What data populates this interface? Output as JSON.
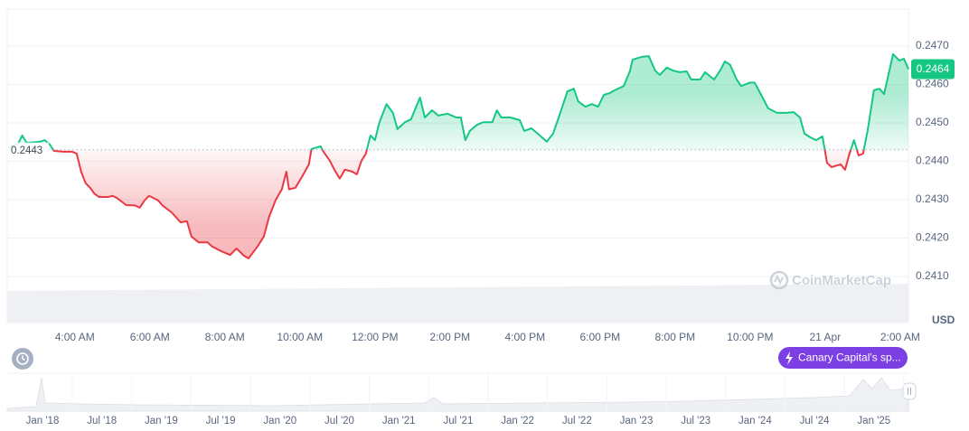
{
  "chart_data": {
    "type": "line",
    "x": [
      2.24,
      2.48,
      2.6,
      2.72,
      3.08,
      3.2,
      3.33,
      3.45,
      3.69,
      3.93,
      4.05,
      4.17,
      4.29,
      4.41,
      4.53,
      4.65,
      4.89,
      5.01,
      5.13,
      5.37,
      5.61,
      5.73,
      5.86,
      5.98,
      6.1,
      6.22,
      6.34,
      6.58,
      6.82,
      6.99,
      7.11,
      7.3,
      7.54,
      7.66,
      7.9,
      8.14,
      8.31,
      8.51,
      8.63,
      8.87,
      9.04,
      9.18,
      9.35,
      9.52,
      9.64,
      9.71,
      9.88,
      10.07,
      10.24,
      10.31,
      10.55,
      10.63,
      10.8,
      10.92,
      11.06,
      11.2,
      11.4,
      11.52,
      11.64,
      11.76,
      11.88,
      12.0,
      12.12,
      12.31,
      12.48,
      12.6,
      12.8,
      12.96,
      13.2,
      13.33,
      13.52,
      13.69,
      13.93,
      14.17,
      14.29,
      14.41,
      14.53,
      14.72,
      14.89,
      15.13,
      15.25,
      15.37,
      15.61,
      15.86,
      15.98,
      16.17,
      16.34,
      16.58,
      16.75,
      16.94,
      17.13,
      17.3,
      17.42,
      17.61,
      17.78,
      17.95,
      18.1,
      18.27,
      18.39,
      18.63,
      18.8,
      18.87,
      19.11,
      19.3,
      19.47,
      19.59,
      19.78,
      19.95,
      20.12,
      20.31,
      20.43,
      20.67,
      20.8,
      21.04,
      21.2,
      21.33,
      21.47,
      21.64,
      21.76,
      22.0,
      22.12,
      22.36,
      22.48,
      22.72,
      22.96,
      23.16,
      23.33,
      23.45,
      23.61,
      23.76,
      23.93,
      24.05,
      24.17,
      24.41,
      24.53,
      24.65,
      24.77,
      24.89,
      25.01,
      25.13,
      25.3,
      25.45,
      25.57,
      25.73,
      25.81,
      25.98,
      26.1,
      26.22
    ],
    "values": [
      0.24436,
      0.24444,
      0.24467,
      0.24448,
      0.24451,
      0.24455,
      0.24444,
      0.24427,
      0.24425,
      0.24425,
      0.2442,
      0.24373,
      0.24343,
      0.24331,
      0.24315,
      0.24307,
      0.24307,
      0.2431,
      0.24304,
      0.24286,
      0.24285,
      0.24279,
      0.24298,
      0.2431,
      0.24304,
      0.24298,
      0.24285,
      0.24267,
      0.24241,
      0.24244,
      0.24204,
      0.24189,
      0.24189,
      0.24178,
      0.24166,
      0.24156,
      0.24173,
      0.24154,
      0.24147,
      0.24178,
      0.24204,
      0.24255,
      0.24298,
      0.24327,
      0.24373,
      0.24327,
      0.24331,
      0.24362,
      0.24392,
      0.24432,
      0.24439,
      0.24425,
      0.24401,
      0.24378,
      0.24355,
      0.24378,
      0.24373,
      0.24366,
      0.24401,
      0.2442,
      0.24467,
      0.24455,
      0.24502,
      0.24549,
      0.24526,
      0.24484,
      0.24502,
      0.24509,
      0.24566,
      0.24514,
      0.24533,
      0.24519,
      0.24524,
      0.24514,
      0.24514,
      0.24455,
      0.24479,
      0.24495,
      0.24502,
      0.24502,
      0.24533,
      0.24514,
      0.24514,
      0.24507,
      0.24479,
      0.24486,
      0.24472,
      0.24451,
      0.24472,
      0.24526,
      0.24582,
      0.24589,
      0.24556,
      0.24542,
      0.24549,
      0.24542,
      0.24573,
      0.24578,
      0.24585,
      0.24596,
      0.24636,
      0.24665,
      0.24672,
      0.24674,
      0.24636,
      0.24625,
      0.24644,
      0.24636,
      0.24632,
      0.24634,
      0.24613,
      0.24613,
      0.24632,
      0.24613,
      0.24636,
      0.2466,
      0.24651,
      0.24613,
      0.24596,
      0.24605,
      0.24605,
      0.24561,
      0.24538,
      0.24526,
      0.24526,
      0.24528,
      0.24514,
      0.24472,
      0.24462,
      0.24455,
      0.24465,
      0.24396,
      0.24385,
      0.24392,
      0.24378,
      0.2442,
      0.24455,
      0.24415,
      0.2442,
      0.24479,
      0.24585,
      0.24589,
      0.24575,
      0.24644,
      0.24679,
      0.24662,
      0.24667,
      0.2464
    ],
    "up_color": "#16c784",
    "down_color": "#ea3943",
    "baseline": 0.2443,
    "current_price": 0.2464,
    "currency": "USD",
    "xlim": [
      2.2,
      26.22
    ],
    "xticks": [
      {
        "value": 4,
        "label": "4:00 AM"
      },
      {
        "value": 6,
        "label": "6:00 AM"
      },
      {
        "value": 8,
        "label": "8:00 AM"
      },
      {
        "value": 10,
        "label": "10:00 AM"
      },
      {
        "value": 12,
        "label": "12:00 PM"
      },
      {
        "value": 14,
        "label": "2:00 PM"
      },
      {
        "value": 16,
        "label": "4:00 PM"
      },
      {
        "value": 18,
        "label": "6:00 PM"
      },
      {
        "value": 20,
        "label": "8:00 PM"
      },
      {
        "value": 22,
        "label": "10:00 PM"
      },
      {
        "value": 24,
        "label": "21 Apr"
      },
      {
        "value": 26,
        "label": "2:00 AM"
      }
    ],
    "ylim": [
      0.24,
      0.248
    ],
    "yticks": [
      {
        "value": 0.241,
        "label": "0.2410"
      },
      {
        "value": 0.242,
        "label": "0.2420"
      },
      {
        "value": 0.243,
        "label": "0.2430"
      },
      {
        "value": 0.244,
        "label": "0.2440"
      },
      {
        "value": 0.245,
        "label": "0.2450"
      },
      {
        "value": 0.246,
        "label": "0.2460"
      },
      {
        "value": 0.247,
        "label": "0.2470"
      }
    ],
    "grid": true,
    "watermark": "CoinMarketCap",
    "event": "Canary Capital's sp...",
    "navigator_labels": [
      "Jan '18",
      "Jul '18",
      "Jan '19",
      "Jul '19",
      "Jan '20",
      "Jul '20",
      "Jan '21",
      "Jul '21",
      "Jan '22",
      "Jul '22",
      "Jan '23",
      "Jul '23",
      "Jan '24",
      "Jul '24",
      "Jan '25"
    ]
  }
}
